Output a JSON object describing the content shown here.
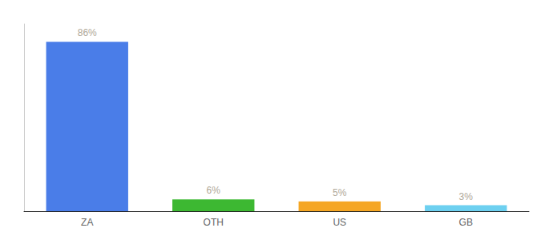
{
  "chart_data": {
    "type": "bar",
    "categories": [
      "ZA",
      "OTH",
      "US",
      "GB"
    ],
    "values": [
      86,
      6,
      5,
      3
    ],
    "value_labels": [
      "86%",
      "6%",
      "5%",
      "3%"
    ],
    "colors": [
      "#4a7de8",
      "#3db832",
      "#f5a623",
      "#6dd0f0"
    ],
    "ylim": [
      0,
      95
    ],
    "grid": false,
    "data_labels": true,
    "tick_labels": "x"
  }
}
